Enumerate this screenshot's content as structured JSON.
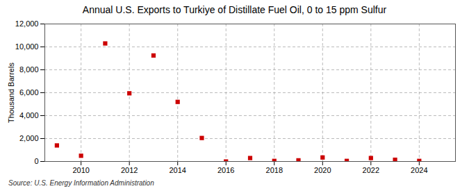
{
  "chart_data": {
    "type": "scatter",
    "title": "Annual U.S. Exports to Turkiye of Distillate Fuel Oil, 0 to 15 ppm Sulfur",
    "ylabel": "Thousand Barrels",
    "source": "Source: U.S. Energy Information Administration",
    "x": [
      2009,
      2010,
      2011,
      2012,
      2013,
      2014,
      2015,
      2016,
      2017,
      2018,
      2019,
      2020,
      2021,
      2022,
      2023,
      2024
    ],
    "values": [
      1400,
      500,
      10300,
      5950,
      9250,
      5200,
      2050,
      0,
      300,
      50,
      100,
      350,
      50,
      300,
      150,
      50
    ],
    "color": "#cc0000",
    "marker": "square",
    "xlim": [
      2008.5,
      2025.5
    ],
    "xticks": [
      2010,
      2012,
      2014,
      2016,
      2018,
      2020,
      2022,
      2024
    ],
    "ylim": [
      0,
      12000
    ],
    "yticks": [
      0,
      {
        "value": 2000,
        "label": "2,000"
      },
      {
        "value": 4000,
        "label": "4,000"
      },
      {
        "value": 6000,
        "label": "6,000"
      },
      {
        "value": 8000,
        "label": "8,000"
      },
      {
        "value": 10000,
        "label": "10,000"
      },
      {
        "value": 12000,
        "label": "12,000"
      }
    ],
    "grid": true
  }
}
